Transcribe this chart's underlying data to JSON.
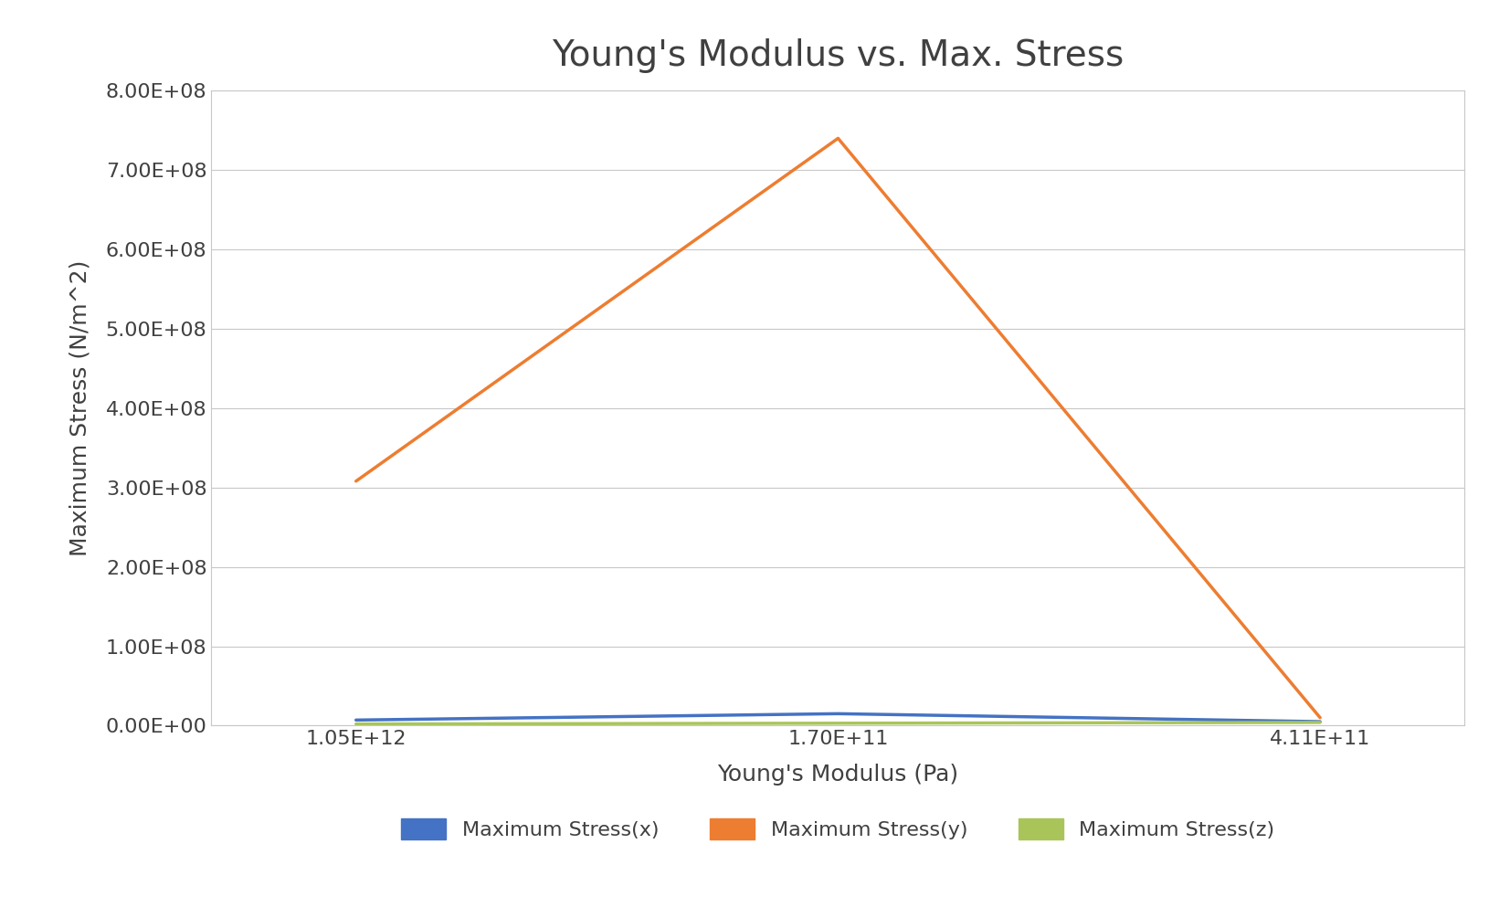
{
  "title": "Young's Modulus vs. Max. Stress",
  "xlabel": "Young's Modulus (Pa)",
  "ylabel": "Maximum Stress (N/m^2)",
  "x_tick_labels": [
    "1.05E+12",
    "1.70E+11",
    "4.11E+11"
  ],
  "x_positions": [
    0,
    1,
    2
  ],
  "series": [
    {
      "label": "Maximum Stress(x)",
      "color": "#4472C4",
      "values": [
        7000000,
        15000000,
        5000000
      ]
    },
    {
      "label": "Maximum Stress(y)",
      "color": "#ED7D31",
      "values": [
        308000000,
        740000000,
        10000000
      ]
    },
    {
      "label": "Maximum Stress(z)",
      "color": "#A9C55A",
      "values": [
        2000000,
        3000000,
        4000000
      ]
    }
  ],
  "ylim": [
    0,
    800000000.0
  ],
  "yticks": [
    0,
    100000000.0,
    200000000.0,
    300000000.0,
    400000000.0,
    500000000.0,
    600000000.0,
    700000000.0,
    800000000.0
  ],
  "ytick_labels": [
    "0.00E+00",
    "1.00E+08",
    "2.00E+08",
    "3.00E+08",
    "4.00E+08",
    "5.00E+08",
    "6.00E+08",
    "7.00E+08",
    "8.00E+08"
  ],
  "background_color": "#FFFFFF",
  "grid_color": "#C8C8C8",
  "title_fontsize": 28,
  "label_fontsize": 18,
  "tick_fontsize": 16,
  "legend_fontsize": 16,
  "line_width": 2.5,
  "text_color": "#404040"
}
